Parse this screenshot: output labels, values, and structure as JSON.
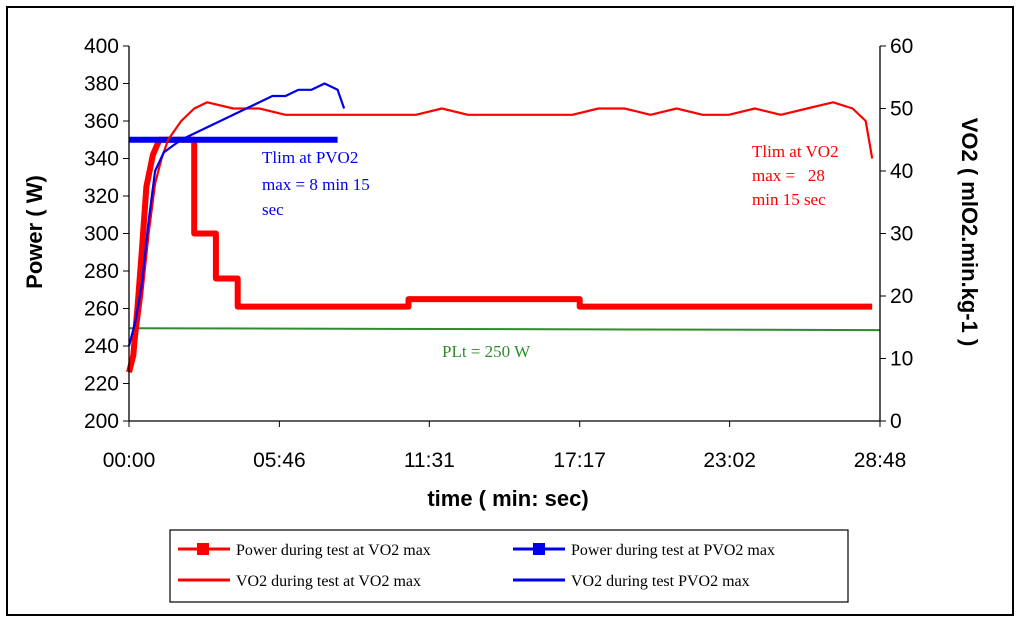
{
  "chart_data": {
    "type": "line",
    "xlabel": "time ( min: sec)",
    "ylabel_left": "Power ( W)",
    "ylabel_right": "VO2 ( mlO2.min.kg-1 )",
    "left_axis": {
      "min": 200,
      "max": 400,
      "step": 20
    },
    "right_axis": {
      "min": 0,
      "max": 60,
      "step": 10
    },
    "x_axis": {
      "min_seconds": 0,
      "max_seconds": 1728
    },
    "x_tick_labels": [
      "00:00",
      "05:46",
      "11:31",
      "17:17",
      "23:02",
      "28:48"
    ],
    "grid": false,
    "legend_position": "bottom",
    "colors": {
      "red": "#ff0000",
      "blue": "#0000ee",
      "green": "#2e8b2e"
    },
    "series": [
      {
        "name": "Power during test at VO2 max",
        "axis": "left",
        "color": "#ff0000",
        "marker": "square",
        "points": [
          [
            "00:00",
            226
          ],
          [
            "00:10",
            235
          ],
          [
            "00:20",
            262
          ],
          [
            "00:30",
            292
          ],
          [
            "00:40",
            325
          ],
          [
            "00:55",
            342
          ],
          [
            "01:10",
            350
          ],
          [
            "02:10",
            350
          ],
          [
            "02:30",
            350
          ],
          [
            "02:30",
            300
          ],
          [
            "03:20",
            300
          ],
          [
            "03:20",
            276
          ],
          [
            "04:10",
            276
          ],
          [
            "04:10",
            261
          ],
          [
            "10:43",
            261
          ],
          [
            "10:43",
            265
          ],
          [
            "17:17",
            265
          ],
          [
            "17:17",
            261
          ],
          [
            "28:30",
            261
          ]
        ]
      },
      {
        "name": "Power during test at PVO2 max",
        "axis": "left",
        "color": "#0000ee",
        "marker": "square",
        "points": [
          [
            "00:00",
            350
          ],
          [
            "08:00",
            350
          ]
        ]
      },
      {
        "name": "VO2 during test at VO2 max",
        "axis": "right",
        "color": "#ff0000",
        "points": [
          [
            "00:00",
            8
          ],
          [
            "00:15",
            12
          ],
          [
            "00:30",
            20
          ],
          [
            "00:45",
            30
          ],
          [
            "01:00",
            38
          ],
          [
            "01:15",
            42
          ],
          [
            "01:30",
            45
          ],
          [
            "02:00",
            48
          ],
          [
            "02:30",
            50
          ],
          [
            "03:00",
            51
          ],
          [
            "04:00",
            50
          ],
          [
            "05:00",
            50
          ],
          [
            "06:00",
            49
          ],
          [
            "07:00",
            49
          ],
          [
            "08:00",
            49
          ],
          [
            "09:00",
            49
          ],
          [
            "10:00",
            49
          ],
          [
            "11:00",
            49
          ],
          [
            "12:00",
            50
          ],
          [
            "13:00",
            49
          ],
          [
            "14:00",
            49
          ],
          [
            "15:00",
            49
          ],
          [
            "16:00",
            49
          ],
          [
            "17:00",
            49
          ],
          [
            "18:00",
            50
          ],
          [
            "19:00",
            50
          ],
          [
            "20:00",
            49
          ],
          [
            "21:00",
            50
          ],
          [
            "22:00",
            49
          ],
          [
            "23:00",
            49
          ],
          [
            "24:00",
            50
          ],
          [
            "25:00",
            49
          ],
          [
            "26:00",
            50
          ],
          [
            "27:00",
            51
          ],
          [
            "27:45",
            50
          ],
          [
            "28:15",
            48
          ],
          [
            "28:30",
            42
          ]
        ]
      },
      {
        "name": "VO2 during test PVO2 max",
        "axis": "right",
        "color": "#0000ee",
        "points": [
          [
            "00:00",
            12
          ],
          [
            "00:15",
            16
          ],
          [
            "00:30",
            22
          ],
          [
            "00:45",
            32
          ],
          [
            "01:00",
            40
          ],
          [
            "01:20",
            43
          ],
          [
            "01:40",
            44
          ],
          [
            "02:00",
            45
          ],
          [
            "02:30",
            46
          ],
          [
            "03:00",
            47
          ],
          [
            "03:30",
            48
          ],
          [
            "04:00",
            49
          ],
          [
            "04:30",
            50
          ],
          [
            "05:00",
            51
          ],
          [
            "05:30",
            52
          ],
          [
            "06:00",
            52
          ],
          [
            "06:30",
            53
          ],
          [
            "07:00",
            53
          ],
          [
            "07:30",
            54
          ],
          [
            "08:00",
            53
          ],
          [
            "08:15",
            50
          ]
        ]
      },
      {
        "name": "PLt",
        "axis": "left",
        "color": "#2e8b2e",
        "points": [
          [
            "00:00",
            249.5
          ],
          [
            "28:48",
            248.5
          ]
        ]
      }
    ],
    "annotations": [
      {
        "text": [
          "Tlim at PVO2",
          "max = 8 min 15",
          "sec"
        ],
        "color": "#0000ee"
      },
      {
        "text": [
          "Tlim at VO2",
          "max =   28",
          "min 15 sec"
        ],
        "color": "#ff0000"
      },
      {
        "text": [
          "PLt = 250 W"
        ],
        "color": "#2e8b2e"
      }
    ]
  }
}
